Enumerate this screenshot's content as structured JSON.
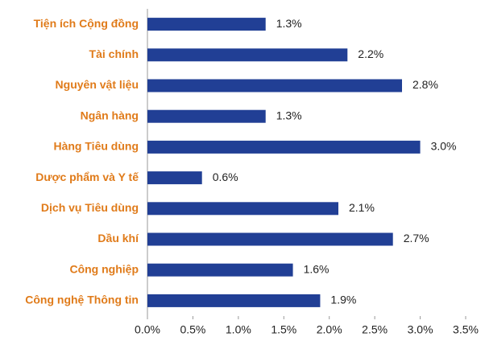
{
  "chart_data": {
    "type": "bar",
    "orientation": "horizontal",
    "categories": [
      "Tiện ích Cộng đồng",
      "Tài chính",
      "Nguyên vật liệu",
      "Ngân hàng",
      "Hàng Tiêu dùng",
      "Dược phẩm và Y tế",
      "Dịch vụ Tiêu dùng",
      "Dầu khí",
      "Công nghiệp",
      "Công nghệ Thông tin"
    ],
    "values": [
      1.3,
      2.2,
      2.8,
      1.3,
      3.0,
      0.6,
      2.1,
      2.7,
      1.6,
      1.9
    ],
    "value_labels": [
      "1.3%",
      "2.2%",
      "2.8%",
      "1.3%",
      "3.0%",
      "0.6%",
      "2.1%",
      "2.7%",
      "1.6%",
      "1.9%"
    ],
    "color": "#213f95",
    "xlim": [
      0,
      3.5
    ],
    "xticks": [
      {
        "value": 0,
        "label": "0.0%"
      },
      {
        "value": 0.5,
        "label": "0.5%"
      },
      {
        "value": 1,
        "label": "1.0%"
      },
      {
        "value": 1.5,
        "label": "1.5%"
      },
      {
        "value": 2,
        "label": "2.0%"
      },
      {
        "value": 2.5,
        "label": "2.5%"
      },
      {
        "value": 3,
        "label": "3.0%"
      },
      {
        "value": 3.5,
        "label": "3.5%"
      }
    ],
    "grid": false
  }
}
